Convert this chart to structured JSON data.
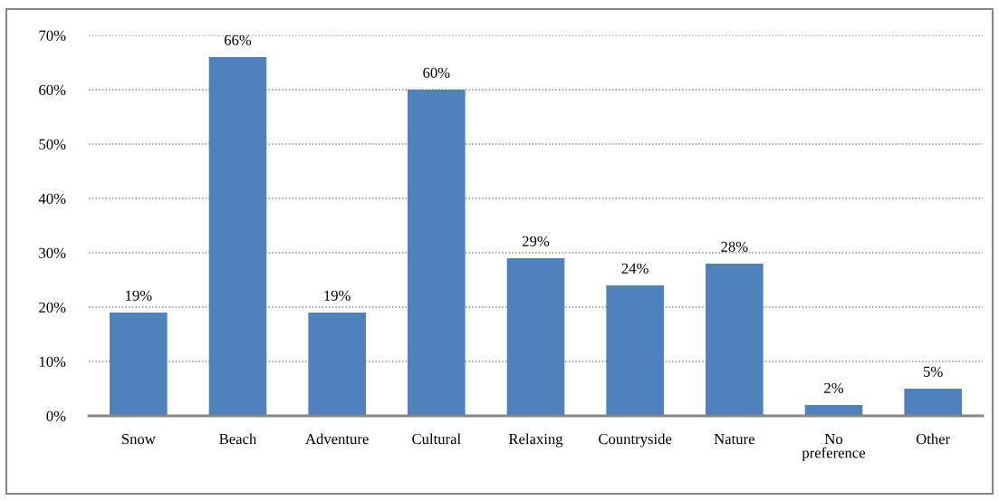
{
  "chart_data": {
    "type": "bar",
    "categories": [
      "Snow",
      "Beach",
      "Adventure",
      "Cultural",
      "Relaxing",
      "Countryside",
      "Nature",
      "No\npreference",
      "Other"
    ],
    "values": [
      19,
      66,
      19,
      60,
      29,
      24,
      28,
      2,
      5
    ],
    "value_labels": [
      "19%",
      "66%",
      "19%",
      "60%",
      "29%",
      "24%",
      "28%",
      "2%",
      "5%"
    ],
    "color": "#4f81bd",
    "ylim": [
      0,
      70
    ],
    "yticks": [
      {
        "value": 0,
        "label": "0%"
      },
      {
        "value": 10,
        "label": "10%"
      },
      {
        "value": 20,
        "label": "20%"
      },
      {
        "value": 30,
        "label": "30%"
      },
      {
        "value": 40,
        "label": "40%"
      },
      {
        "value": 50,
        "label": "50%"
      },
      {
        "value": 60,
        "label": "60%"
      },
      {
        "value": 70,
        "label": "70%"
      }
    ],
    "grid": "y",
    "line_style": "dotted",
    "legend": false
  }
}
